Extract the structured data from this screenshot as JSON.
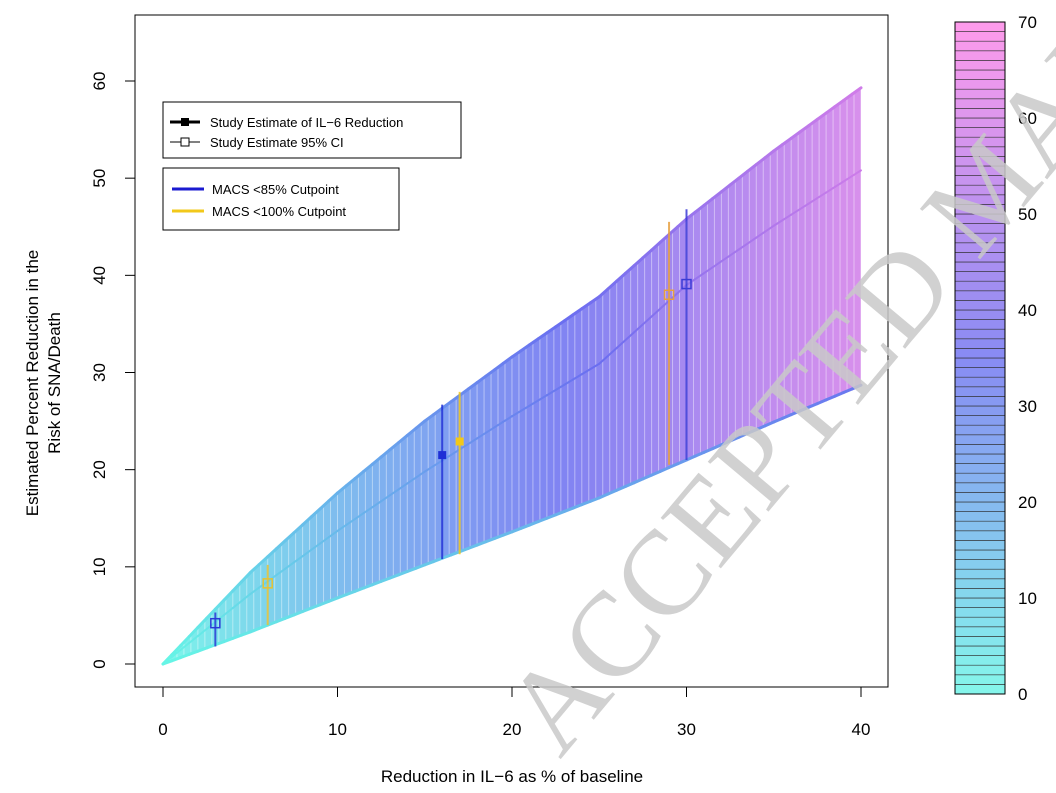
{
  "chart_data": {
    "type": "area",
    "xlabel": "Reduction in IL−6 as % of baseline",
    "ylabel_line1": "Estimated Percent Reduction in the",
    "ylabel_line2": "Risk of SNA/Death",
    "xlim": [
      0,
      40
    ],
    "ylim": [
      0,
      65
    ],
    "x_ticks": [
      0,
      10,
      20,
      30,
      40
    ],
    "y_ticks": [
      0,
      10,
      20,
      30,
      40,
      50,
      60
    ],
    "x_tick_labels": [
      "0",
      "10",
      "20",
      "30",
      "40"
    ],
    "y_tick_labels": [
      "0",
      "10",
      "20",
      "30",
      "40",
      "50",
      "60"
    ],
    "band": {
      "x": [
        0,
        5,
        10,
        15,
        20,
        25,
        30,
        35,
        40
      ],
      "upper": [
        0,
        9.4,
        17.6,
        25.0,
        31.6,
        37.8,
        45.8,
        52.8,
        59.3
      ],
      "center": [
        0,
        7.2,
        13.7,
        19.8,
        25.5,
        30.9,
        39.0,
        45.1,
        50.8
      ],
      "lower": [
        0,
        3.3,
        6.8,
        10.2,
        13.6,
        17.1,
        21.0,
        24.9,
        28.7
      ]
    },
    "estimates": [
      {
        "group": "MACS <85% Cutpoint",
        "x": 3,
        "y": 4.2,
        "ci_low": 1.8,
        "ci_high": 5.3,
        "style": "open",
        "color": "#2b3bd6"
      },
      {
        "group": "MACS <100% Cutpoint",
        "x": 6,
        "y": 8.3,
        "ci_low": 4.0,
        "ci_high": 10.2,
        "style": "open",
        "color": "#e6c233"
      },
      {
        "group": "MACS <85% Cutpoint",
        "x": 16,
        "y": 21.5,
        "ci_low": 10.8,
        "ci_high": 26.7,
        "style": "filled",
        "color": "#1f2fd6"
      },
      {
        "group": "MACS <100% Cutpoint",
        "x": 17,
        "y": 22.9,
        "ci_low": 11.3,
        "ci_high": 28.0,
        "style": "filled",
        "color": "#f2c81a"
      },
      {
        "group": "MACS <100% Cutpoint",
        "x": 29,
        "y": 38.0,
        "ci_low": 20.5,
        "ci_high": 45.5,
        "style": "open",
        "color": "#e6a040"
      },
      {
        "group": "MACS <85% Cutpoint",
        "x": 30,
        "y": 39.1,
        "ci_low": 21.0,
        "ci_high": 46.8,
        "style": "open",
        "color": "#3b3bd6"
      }
    ],
    "legend_markers": [
      {
        "label": "Study Estimate of IL−6 Reduction",
        "style": "filled"
      },
      {
        "label": "Study Estimate 95% CI",
        "style": "open"
      }
    ],
    "legend_groups": [
      {
        "label": "MACS <85% Cutpoint",
        "color": "#1a1ad0"
      },
      {
        "label": "MACS <100% Cutpoint",
        "color": "#f2c81a"
      }
    ],
    "colorbar": {
      "min": 0,
      "max": 70,
      "ticks": [
        0,
        10,
        20,
        30,
        40,
        50,
        60,
        70
      ],
      "tick_labels": [
        "0",
        "10",
        "20",
        "30",
        "40",
        "50",
        "60",
        "70"
      ],
      "colors": [
        "#66f5e6",
        "#6a6ef0",
        "#ff82e6"
      ]
    },
    "watermark": "ACCEPTED MANUSCRIPT"
  }
}
